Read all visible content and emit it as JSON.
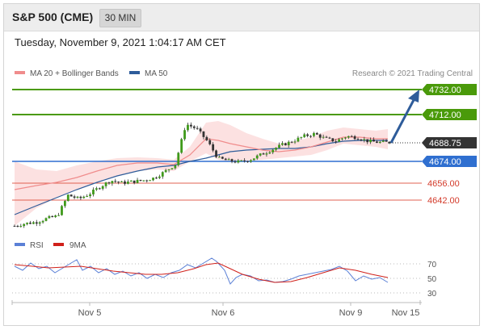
{
  "header": {
    "title": "S&P 500 (CME)",
    "interval": "30 MIN"
  },
  "timestamp": "Tuesday, November 9, 2021 1:04:17 AM CET",
  "legend": {
    "ma20_label": "MA 20 + Bollinger Bands",
    "ma50_label": "MA 50",
    "ma20_color": "#f08c8c",
    "ma50_color": "#2e5c9a",
    "copyright": "Research © 2021 Trading Central"
  },
  "levels": [
    {
      "value": "4732.00",
      "type": "resistance",
      "color": "#4a9a0a"
    },
    {
      "value": "4712.00",
      "type": "resistance",
      "color": "#4a9a0a"
    },
    {
      "value": "4688.75",
      "type": "last",
      "color": "#333333"
    },
    {
      "value": "4674.00",
      "type": "pivot",
      "color": "#2f6fd0"
    },
    {
      "value": "4656.00",
      "type": "support",
      "color": "#d33a2a"
    },
    {
      "value": "4642.00",
      "type": "support",
      "color": "#d33a2a"
    }
  ],
  "rsi_legend": {
    "rsi_label": "RSI",
    "ma_label": "9MA",
    "rsi_color": "#5b80d6",
    "ma_color": "#d0201a"
  },
  "rsi_levels": [
    "70",
    "50",
    "30"
  ],
  "x_axis": [
    "Nov 5",
    "Nov 6",
    "Nov 9",
    "Nov 15"
  ],
  "chart_data": {
    "type": "line",
    "title": "S&P 500 (CME)",
    "interval": "30 MIN",
    "ylim": [
      4600,
      4740
    ],
    "series": [
      {
        "name": "Price",
        "x": [
          0,
          1,
          2,
          3,
          4,
          5,
          6,
          7,
          8,
          9,
          10,
          11,
          12,
          13,
          14,
          15,
          16,
          17,
          18,
          19,
          20,
          21,
          22,
          23,
          24,
          25,
          26,
          27,
          28,
          29,
          30,
          31,
          32,
          33,
          34,
          35
        ],
        "values": [
          4621,
          4623,
          4624,
          4627,
          4629,
          4646,
          4643,
          4647,
          4653,
          4658,
          4656,
          4657,
          4658,
          4660,
          4665,
          4671,
          4704,
          4700,
          4690,
          4676,
          4674,
          4673,
          4675,
          4679,
          4683,
          4687,
          4690,
          4694,
          4696,
          4692,
          4690,
          4694,
          4693,
          4690,
          4689,
          4689
        ]
      },
      {
        "name": "MA 20 + Bollinger Bands",
        "x": [
          0,
          3,
          6,
          9,
          12,
          15,
          18,
          21,
          24,
          27,
          30,
          33,
          35
        ],
        "values": [
          4618,
          4622,
          4633,
          4649,
          4654,
          4662,
          4680,
          4679,
          4678,
          4685,
          4690,
          4691,
          4690
        ]
      },
      {
        "name": "MA 50",
        "x": [
          0,
          3,
          6,
          9,
          12,
          15,
          18,
          21,
          24,
          27,
          30,
          33,
          35
        ],
        "values": [
          4598,
          4610,
          4625,
          4640,
          4650,
          4657,
          4665,
          4673,
          4677,
          4680,
          4685,
          4688,
          4689
        ]
      }
    ],
    "x_labels": [
      "Nov 5",
      "Nov 6",
      "Nov 9",
      "Nov 15"
    ],
    "rsi": {
      "ylim": [
        20,
        80
      ],
      "levels": [
        70,
        50,
        30
      ],
      "rsi_values": [
        60,
        58,
        62,
        55,
        66,
        58,
        64,
        55,
        60,
        55,
        62,
        58,
        65,
        62,
        58,
        72,
        60,
        50,
        46,
        44,
        45,
        50,
        55,
        60,
        58,
        62,
        66,
        55,
        52,
        50,
        48,
        49
      ],
      "ma9_values": [
        60,
        60,
        59,
        58,
        58,
        59,
        60,
        60,
        59,
        58,
        58,
        59,
        60,
        61,
        63,
        64,
        63,
        60,
        54,
        50,
        48,
        47,
        48,
        50,
        53,
        56,
        58,
        60,
        60,
        58,
        55,
        53
      ]
    }
  }
}
